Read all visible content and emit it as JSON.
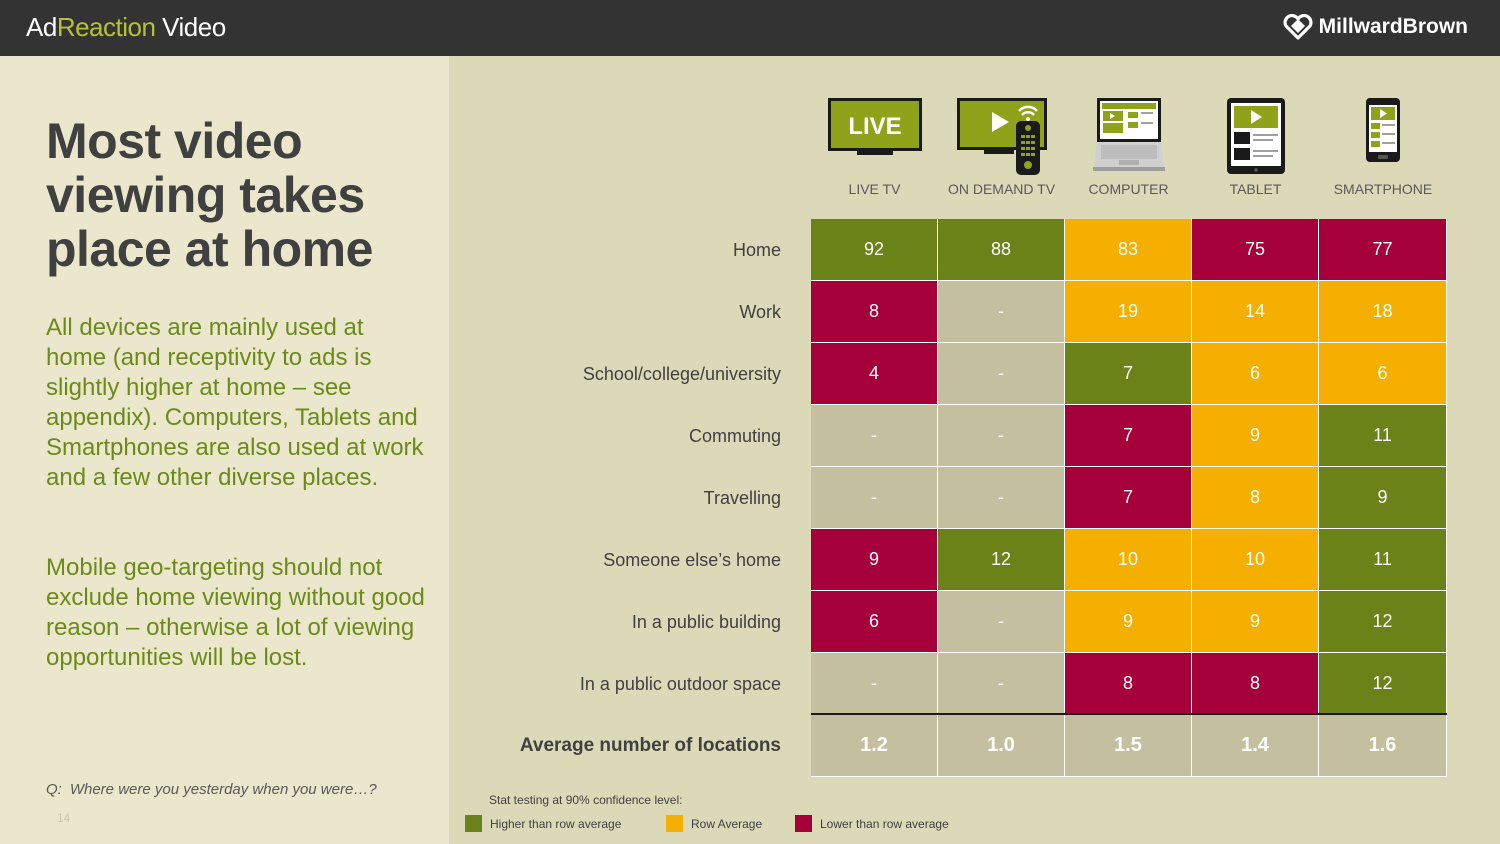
{
  "header": {
    "brand_part1": "Ad",
    "brand_part2": "Reaction",
    "brand_part3": " Video",
    "logo_text": "MillwardBrown"
  },
  "left": {
    "headline": "Most video viewing takes place at home",
    "paragraph1": "All devices are mainly used at home (and receptivity to ads is slightly higher at home – see appendix). Computers, Tablets and Smartphones are also used at work and a few other diverse places.",
    "paragraph2": "Mobile geo-targeting should not exclude home viewing without good reason – otherwise a lot of viewing opportunities will be lost.",
    "question_prefix": "Q:",
    "question": "Where were you yesterday when you were…?",
    "page_number": "14"
  },
  "devices": [
    {
      "label": "LIVE TV",
      "icon": "live-tv-icon",
      "icon_text": "LIVE"
    },
    {
      "label": "ON DEMAND TV",
      "icon": "on-demand-tv-icon"
    },
    {
      "label": "COMPUTER",
      "icon": "laptop-icon"
    },
    {
      "label": "TABLET",
      "icon": "tablet-icon"
    },
    {
      "label": "SMARTPHONE",
      "icon": "smartphone-icon"
    }
  ],
  "table": {
    "rows": [
      {
        "label": "Home",
        "values": [
          "92",
          "88",
          "83",
          "75",
          "77"
        ],
        "status": [
          "high",
          "high",
          "avg",
          "low",
          "low"
        ]
      },
      {
        "label": "Work",
        "values": [
          "8",
          "-",
          "19",
          "14",
          "18"
        ],
        "status": [
          "low",
          "na",
          "avg",
          "avg",
          "avg"
        ]
      },
      {
        "label": "School/college/university",
        "values": [
          "4",
          "-",
          "7",
          "6",
          "6"
        ],
        "status": [
          "low",
          "na",
          "high",
          "avg",
          "avg"
        ]
      },
      {
        "label": "Commuting",
        "values": [
          "-",
          "-",
          "7",
          "9",
          "11"
        ],
        "status": [
          "na",
          "na",
          "low",
          "avg",
          "high"
        ]
      },
      {
        "label": "Travelling",
        "values": [
          "-",
          "-",
          "7",
          "8",
          "9"
        ],
        "status": [
          "na",
          "na",
          "low",
          "avg",
          "high"
        ]
      },
      {
        "label": "Someone else’s home",
        "values": [
          "9",
          "12",
          "10",
          "10",
          "11"
        ],
        "status": [
          "low",
          "high",
          "avg",
          "avg",
          "high"
        ]
      },
      {
        "label": "In a public building",
        "values": [
          "6",
          "-",
          "9",
          "9",
          "12"
        ],
        "status": [
          "low",
          "na",
          "avg",
          "avg",
          "high"
        ]
      },
      {
        "label": "In a public outdoor space",
        "values": [
          "-",
          "-",
          "8",
          "8",
          "12"
        ],
        "status": [
          "na",
          "na",
          "low",
          "low",
          "high"
        ]
      }
    ],
    "average": {
      "label": "Average number of locations",
      "values": [
        "1.2",
        "1.0",
        "1.5",
        "1.4",
        "1.6"
      ]
    }
  },
  "legend": {
    "title": "Stat testing at 90% confidence level:",
    "items": [
      {
        "label": "Higher than row average",
        "color": "#6b8219"
      },
      {
        "label": "Row Average",
        "color": "#f4af00"
      },
      {
        "label": "Lower than row average",
        "color": "#a6003a"
      }
    ]
  },
  "colors": {
    "higher": "#6b8219",
    "row_average": "#f4af00",
    "lower": "#a6003a",
    "not_applicable": "#c4c09f",
    "headline_green": "#6b8a1a"
  }
}
